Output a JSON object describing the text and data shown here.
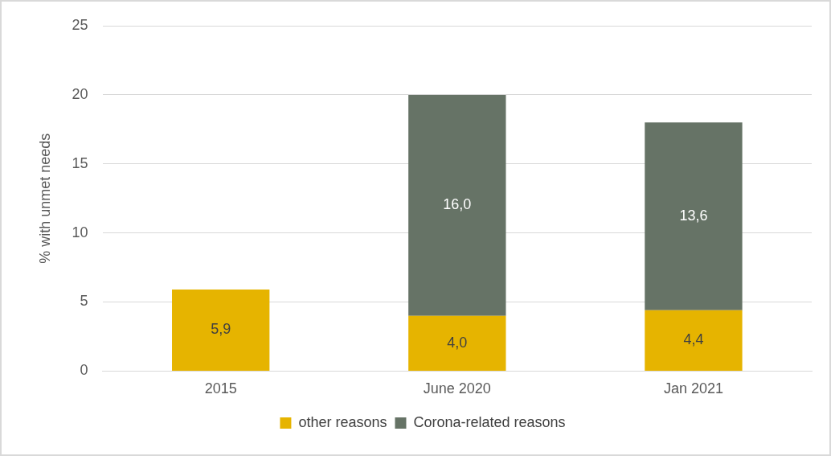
{
  "chart_data": {
    "type": "bar",
    "stacked": true,
    "categories": [
      "2015",
      "June 2020",
      "Jan 2021"
    ],
    "ylabel": "% with unmet needs",
    "ylim": [
      0,
      25
    ],
    "yticks": [
      0,
      5,
      10,
      15,
      20,
      25
    ],
    "grid": "y",
    "legend": "bottom",
    "series": [
      {
        "name": "other reasons",
        "color": "#e6b400",
        "values": [
          5.9,
          4.0,
          4.4
        ],
        "value_labels": [
          "5,9",
          "4,0",
          "4,4"
        ]
      },
      {
        "name": "Corona-related reasons",
        "color": "#667366",
        "values": [
          null,
          16.0,
          13.6
        ],
        "value_labels": [
          null,
          "16,0",
          "13,6"
        ]
      }
    ]
  }
}
